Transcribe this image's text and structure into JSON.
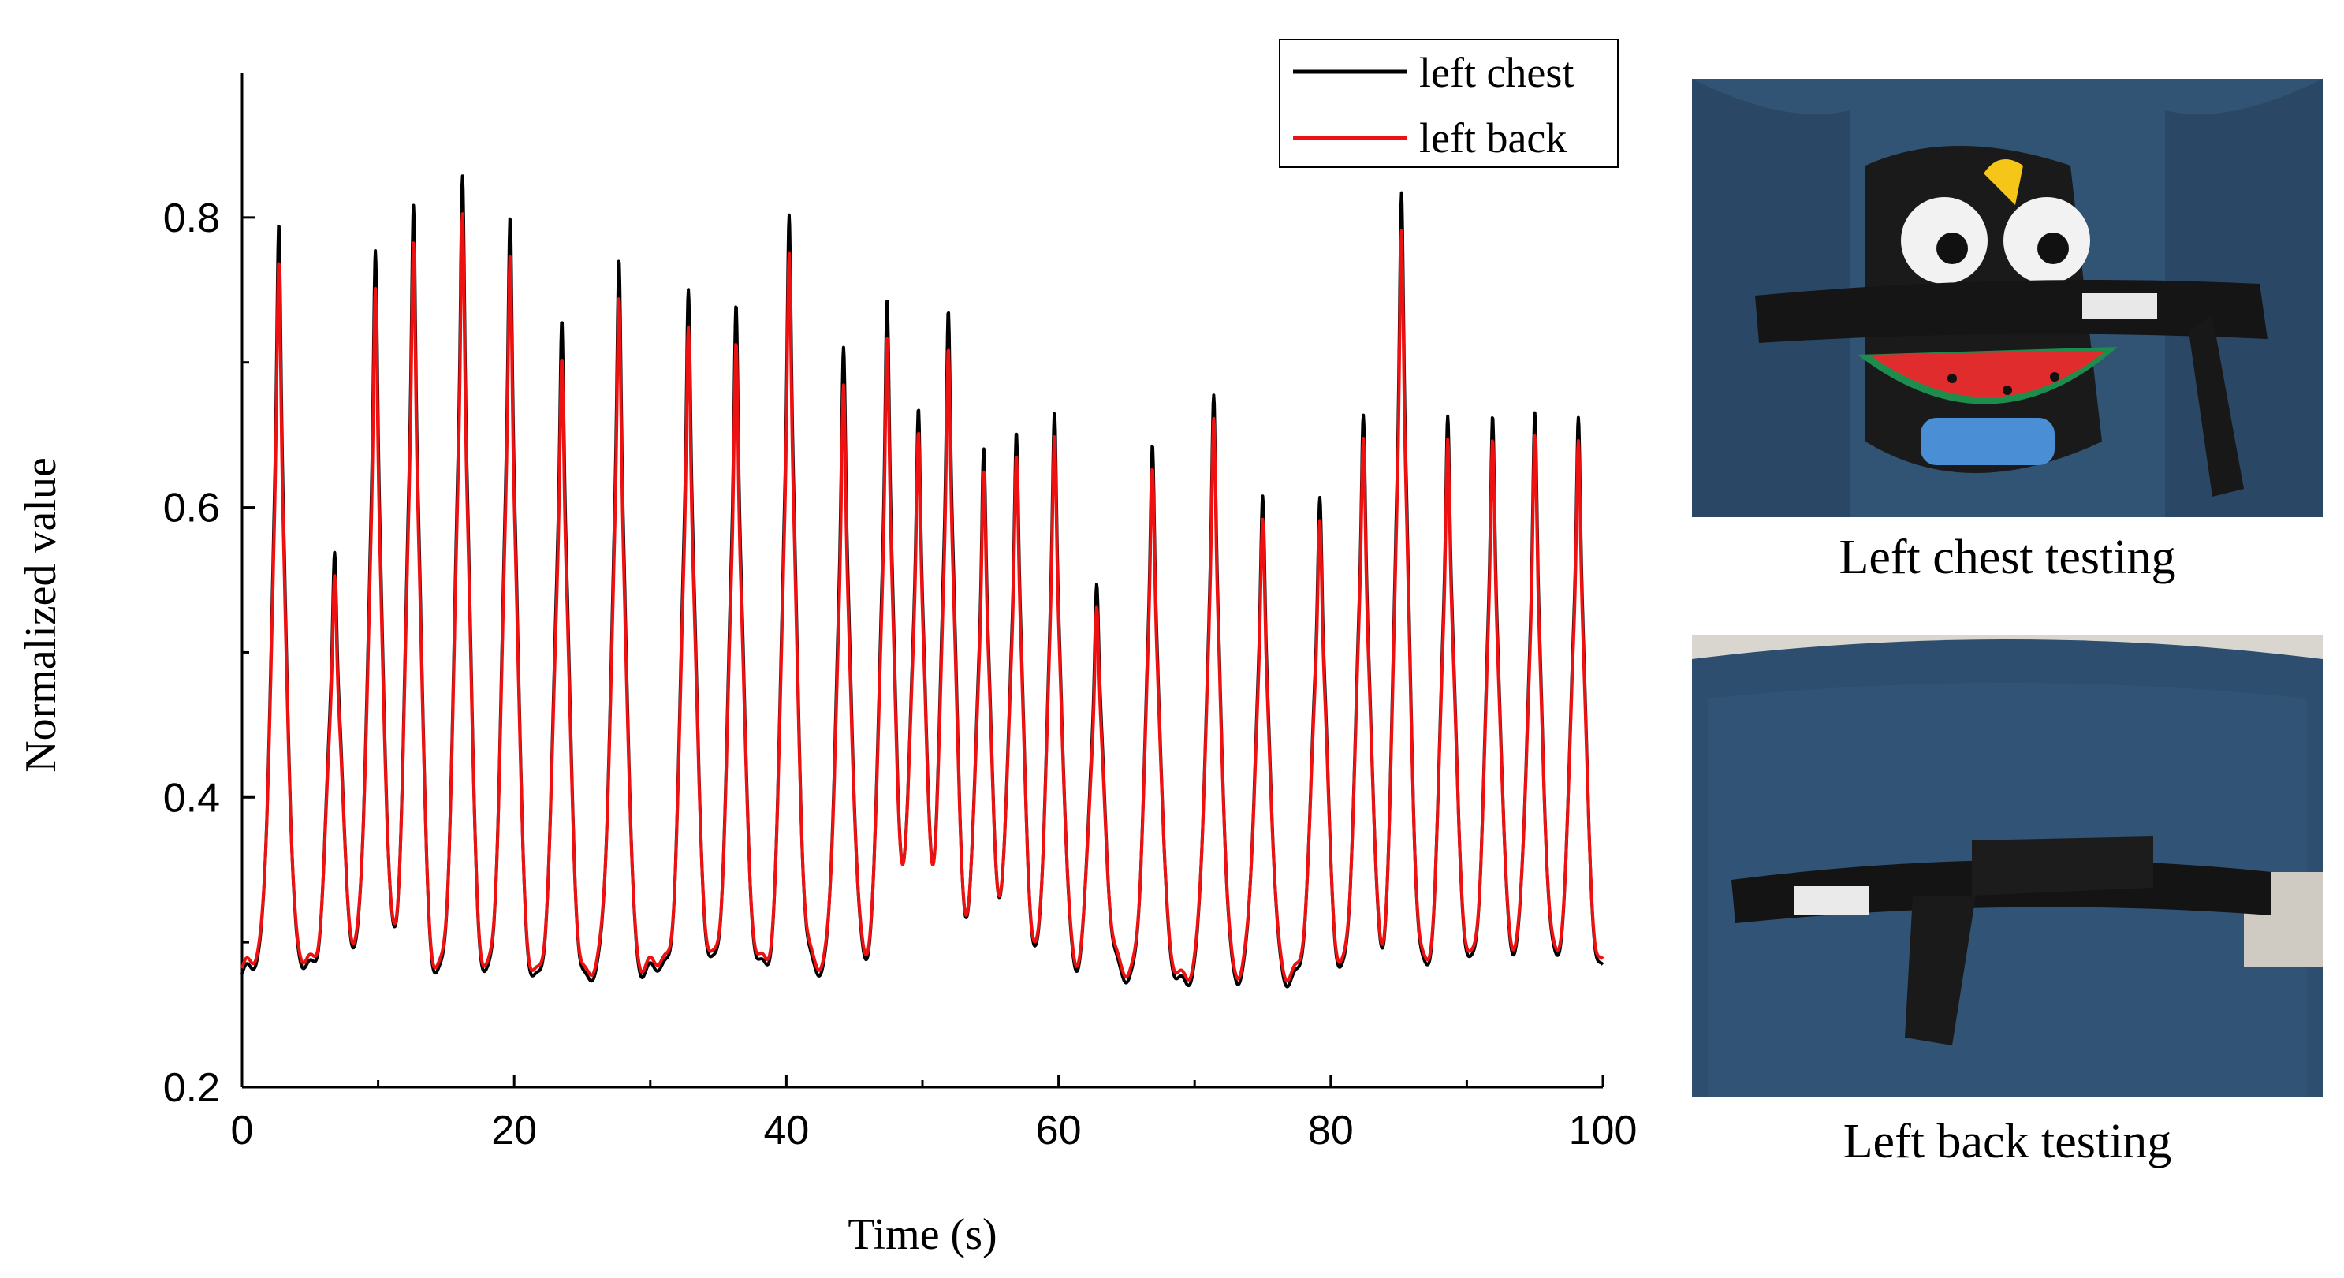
{
  "chart_data": {
    "type": "line",
    "title": "",
    "xlabel": "Time (s)",
    "ylabel": "Normalized value",
    "xlim": [
      0,
      100
    ],
    "ylim": [
      0.2,
      0.9
    ],
    "xticks": [
      0,
      20,
      40,
      60,
      80,
      100
    ],
    "xtick_labels": [
      "0",
      "20",
      "40",
      "60",
      "80",
      "100"
    ],
    "yticks": [
      0.2,
      0.4,
      0.6,
      0.8
    ],
    "ytick_labels": [
      "0.2",
      "0.4",
      "0.6",
      "0.8"
    ],
    "grid": false,
    "legend_position": "top-right",
    "peaks": [
      {
        "t": 2.7,
        "chest": 0.8,
        "back": 0.77
      },
      {
        "t": 6.8,
        "chest": 0.58,
        "back": 0.56
      },
      {
        "t": 9.8,
        "chest": 0.78,
        "back": 0.75
      },
      {
        "t": 12.6,
        "chest": 0.81,
        "back": 0.78
      },
      {
        "t": 16.2,
        "chest": 0.83,
        "back": 0.8
      },
      {
        "t": 19.7,
        "chest": 0.8,
        "back": 0.77
      },
      {
        "t": 23.5,
        "chest": 0.73,
        "back": 0.7
      },
      {
        "t": 27.7,
        "chest": 0.77,
        "back": 0.74
      },
      {
        "t": 32.8,
        "chest": 0.76,
        "back": 0.73
      },
      {
        "t": 36.3,
        "chest": 0.75,
        "back": 0.72
      },
      {
        "t": 40.2,
        "chest": 0.81,
        "back": 0.78
      },
      {
        "t": 44.2,
        "chest": 0.71,
        "back": 0.68
      },
      {
        "t": 47.4,
        "chest": 0.75,
        "back": 0.72
      },
      {
        "t": 49.7,
        "chest": 0.67,
        "back": 0.65
      },
      {
        "t": 51.9,
        "chest": 0.74,
        "back": 0.71
      },
      {
        "t": 54.5,
        "chest": 0.65,
        "back": 0.63
      },
      {
        "t": 56.9,
        "chest": 0.65,
        "back": 0.63
      },
      {
        "t": 59.7,
        "chest": 0.66,
        "back": 0.64
      },
      {
        "t": 62.8,
        "chest": 0.55,
        "back": 0.53
      },
      {
        "t": 66.9,
        "chest": 0.64,
        "back": 0.62
      },
      {
        "t": 71.4,
        "chest": 0.67,
        "back": 0.65
      },
      {
        "t": 75.0,
        "chest": 0.6,
        "back": 0.58
      },
      {
        "t": 79.2,
        "chest": 0.61,
        "back": 0.59
      },
      {
        "t": 82.4,
        "chest": 0.66,
        "back": 0.64
      },
      {
        "t": 85.2,
        "chest": 0.82,
        "back": 0.79
      },
      {
        "t": 88.6,
        "chest": 0.67,
        "back": 0.65
      },
      {
        "t": 91.9,
        "chest": 0.67,
        "back": 0.65
      },
      {
        "t": 95.0,
        "chest": 0.67,
        "back": 0.65
      },
      {
        "t": 98.2,
        "chest": 0.67,
        "back": 0.65
      }
    ],
    "baseline": 0.28,
    "series": [
      {
        "name": "left chest",
        "color": "#000000"
      },
      {
        "name": "left back",
        "color": "#ee1111"
      }
    ]
  },
  "photos": [
    {
      "caption": "Left chest testing",
      "icon": "chest-strap-photo"
    },
    {
      "caption": "Left back testing",
      "icon": "back-strap-photo"
    }
  ]
}
